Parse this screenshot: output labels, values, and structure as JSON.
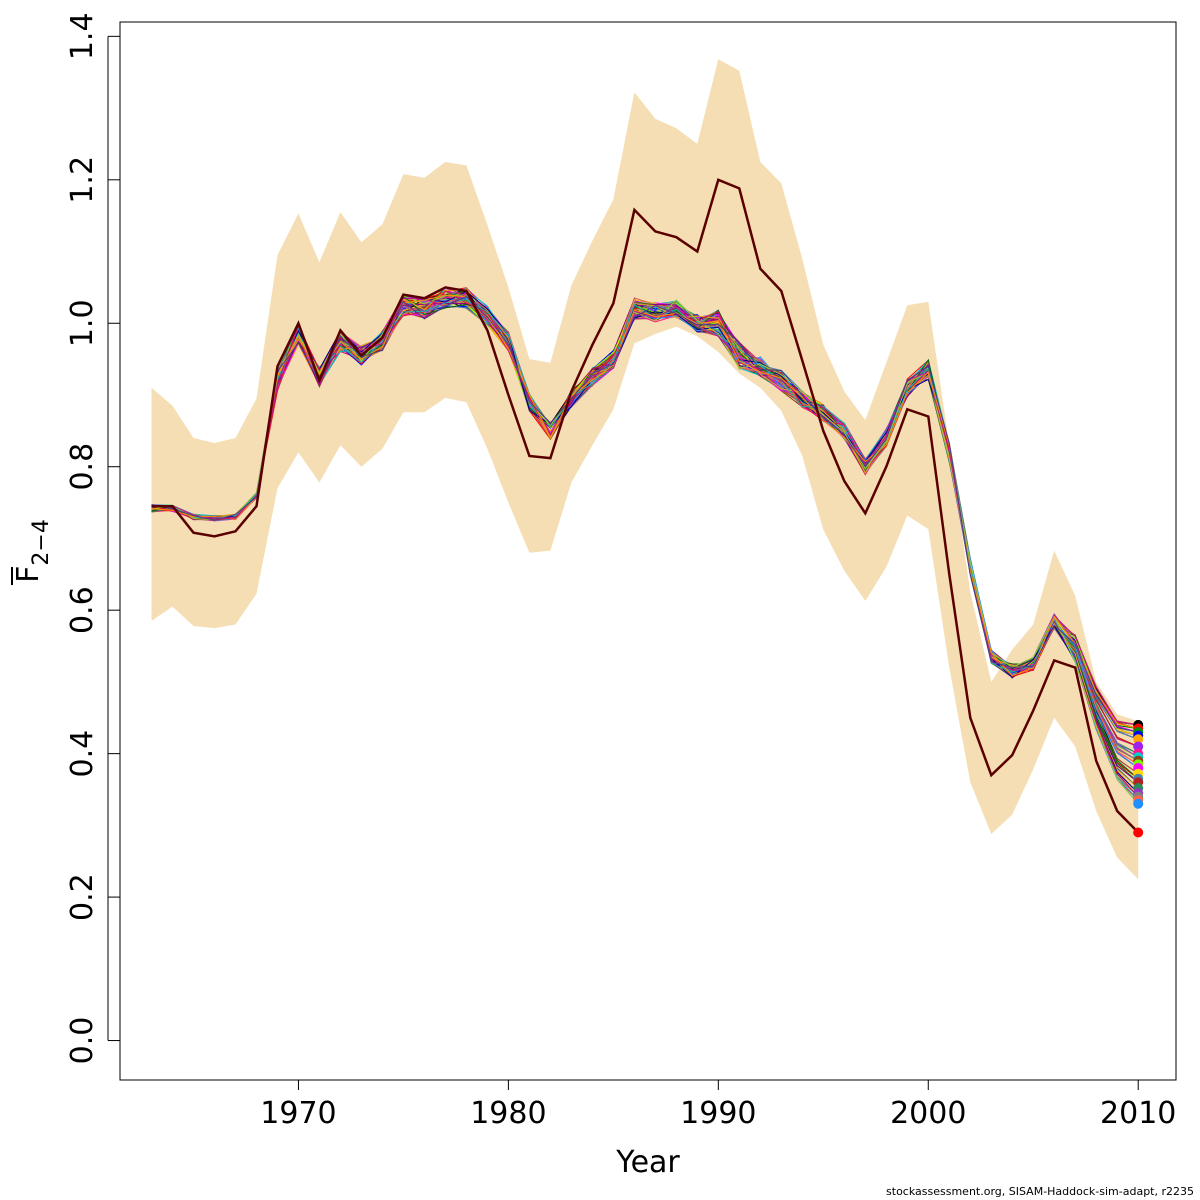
{
  "chart_data": {
    "type": "line",
    "xlabel": "Year",
    "ylabel_main": "F",
    "ylabel_sub": "2−4",
    "xlim": [
      1961.5,
      2011.8
    ],
    "ylim": [
      -0.055,
      1.42
    ],
    "x_ticks": [
      1970,
      1980,
      1990,
      2000,
      2010
    ],
    "y_ticks": [
      0.0,
      0.2,
      0.4,
      0.6,
      0.8,
      1.0,
      1.2,
      1.4
    ],
    "years": [
      1963,
      1964,
      1965,
      1966,
      1967,
      1968,
      1969,
      1970,
      1971,
      1972,
      1973,
      1974,
      1975,
      1976,
      1977,
      1978,
      1979,
      1980,
      1981,
      1982,
      1983,
      1984,
      1985,
      1986,
      1987,
      1988,
      1989,
      1990,
      1991,
      1992,
      1993,
      1994,
      1995,
      1996,
      1997,
      1998,
      1999,
      2000,
      2001,
      2002,
      2003,
      2004,
      2005,
      2006,
      2007,
      2008,
      2009,
      2010
    ],
    "band_upper": [
      0.91,
      0.885,
      0.84,
      0.833,
      0.84,
      0.895,
      1.095,
      1.153,
      1.085,
      1.155,
      1.113,
      1.138,
      1.208,
      1.203,
      1.225,
      1.22,
      1.137,
      1.05,
      0.95,
      0.945,
      1.053,
      1.115,
      1.173,
      1.322,
      1.285,
      1.272,
      1.25,
      1.368,
      1.352,
      1.225,
      1.195,
      1.09,
      0.97,
      0.905,
      0.865,
      0.945,
      1.025,
      1.03,
      0.83,
      0.625,
      0.5,
      0.545,
      0.58,
      0.683,
      0.62,
      0.5,
      0.455,
      0.445
    ],
    "band_lower": [
      0.585,
      0.605,
      0.578,
      0.575,
      0.58,
      0.623,
      0.77,
      0.82,
      0.778,
      0.83,
      0.8,
      0.825,
      0.876,
      0.876,
      0.896,
      0.89,
      0.825,
      0.75,
      0.68,
      0.683,
      0.778,
      0.83,
      0.88,
      0.972,
      0.985,
      0.995,
      0.982,
      0.96,
      0.93,
      0.91,
      0.878,
      0.815,
      0.712,
      0.655,
      0.613,
      0.66,
      0.732,
      0.713,
      0.52,
      0.36,
      0.288,
      0.315,
      0.378,
      0.45,
      0.41,
      0.32,
      0.255,
      0.225
    ],
    "reference_series": [
      0.745,
      0.745,
      0.708,
      0.703,
      0.71,
      0.745,
      0.94,
      1.0,
      0.92,
      0.99,
      0.955,
      0.98,
      1.04,
      1.035,
      1.05,
      1.045,
      0.99,
      0.9,
      0.815,
      0.812,
      0.905,
      0.97,
      1.028,
      1.158,
      1.128,
      1.12,
      1.1,
      1.2,
      1.188,
      1.076,
      1.045,
      0.948,
      0.85,
      0.78,
      0.735,
      0.8,
      0.88,
      0.87,
      0.65,
      0.45,
      0.37,
      0.398,
      0.46,
      0.53,
      0.52,
      0.39,
      0.32,
      0.29
    ],
    "simulated_mean": [
      0.742,
      0.742,
      0.73,
      0.728,
      0.73,
      0.76,
      0.92,
      0.985,
      0.925,
      0.975,
      0.955,
      0.975,
      1.025,
      1.02,
      1.035,
      1.035,
      1.01,
      0.975,
      0.89,
      0.85,
      0.895,
      0.925,
      0.95,
      1.02,
      1.015,
      1.02,
      1.0,
      1.0,
      0.955,
      0.94,
      0.92,
      0.895,
      0.875,
      0.85,
      0.8,
      0.84,
      0.91,
      0.935,
      0.82,
      0.66,
      0.535,
      0.515,
      0.525,
      0.585,
      0.545,
      0.46,
      0.4,
      0.38
    ],
    "simulated_runs_count": 60,
    "end_points": [
      0.44,
      0.435,
      0.43,
      0.425,
      0.42,
      0.41,
      0.4,
      0.395,
      0.39,
      0.385,
      0.38,
      0.372,
      0.365,
      0.36,
      0.352,
      0.345,
      0.34,
      0.335,
      0.33,
      0.29
    ],
    "colors": {
      "band": "#f5deb3",
      "reference": "#5a0000",
      "endpoint_reference": "#ff0000",
      "runs": [
        "#000000",
        "#ff0000",
        "#008b00",
        "#0000ff",
        "#ffa500",
        "#a020f0",
        "#ff1493",
        "#00ced1",
        "#8b4513",
        "#7cfc00",
        "#ff00ff",
        "#ffd700",
        "#4682b4",
        "#b22222",
        "#2e8b57",
        "#9932cc",
        "#808080",
        "#ff6347",
        "#1e90ff",
        "#cd5c5c",
        "#006400",
        "#8b008b",
        "#daa520",
        "#00008b",
        "#dc143c",
        "#20b2aa",
        "#9acd32",
        "#c71585",
        "#ff8c00",
        "#483d8b"
      ]
    }
  },
  "footer": "stockassessment.org, SISAM-Haddock-sim-adapt, r2235"
}
